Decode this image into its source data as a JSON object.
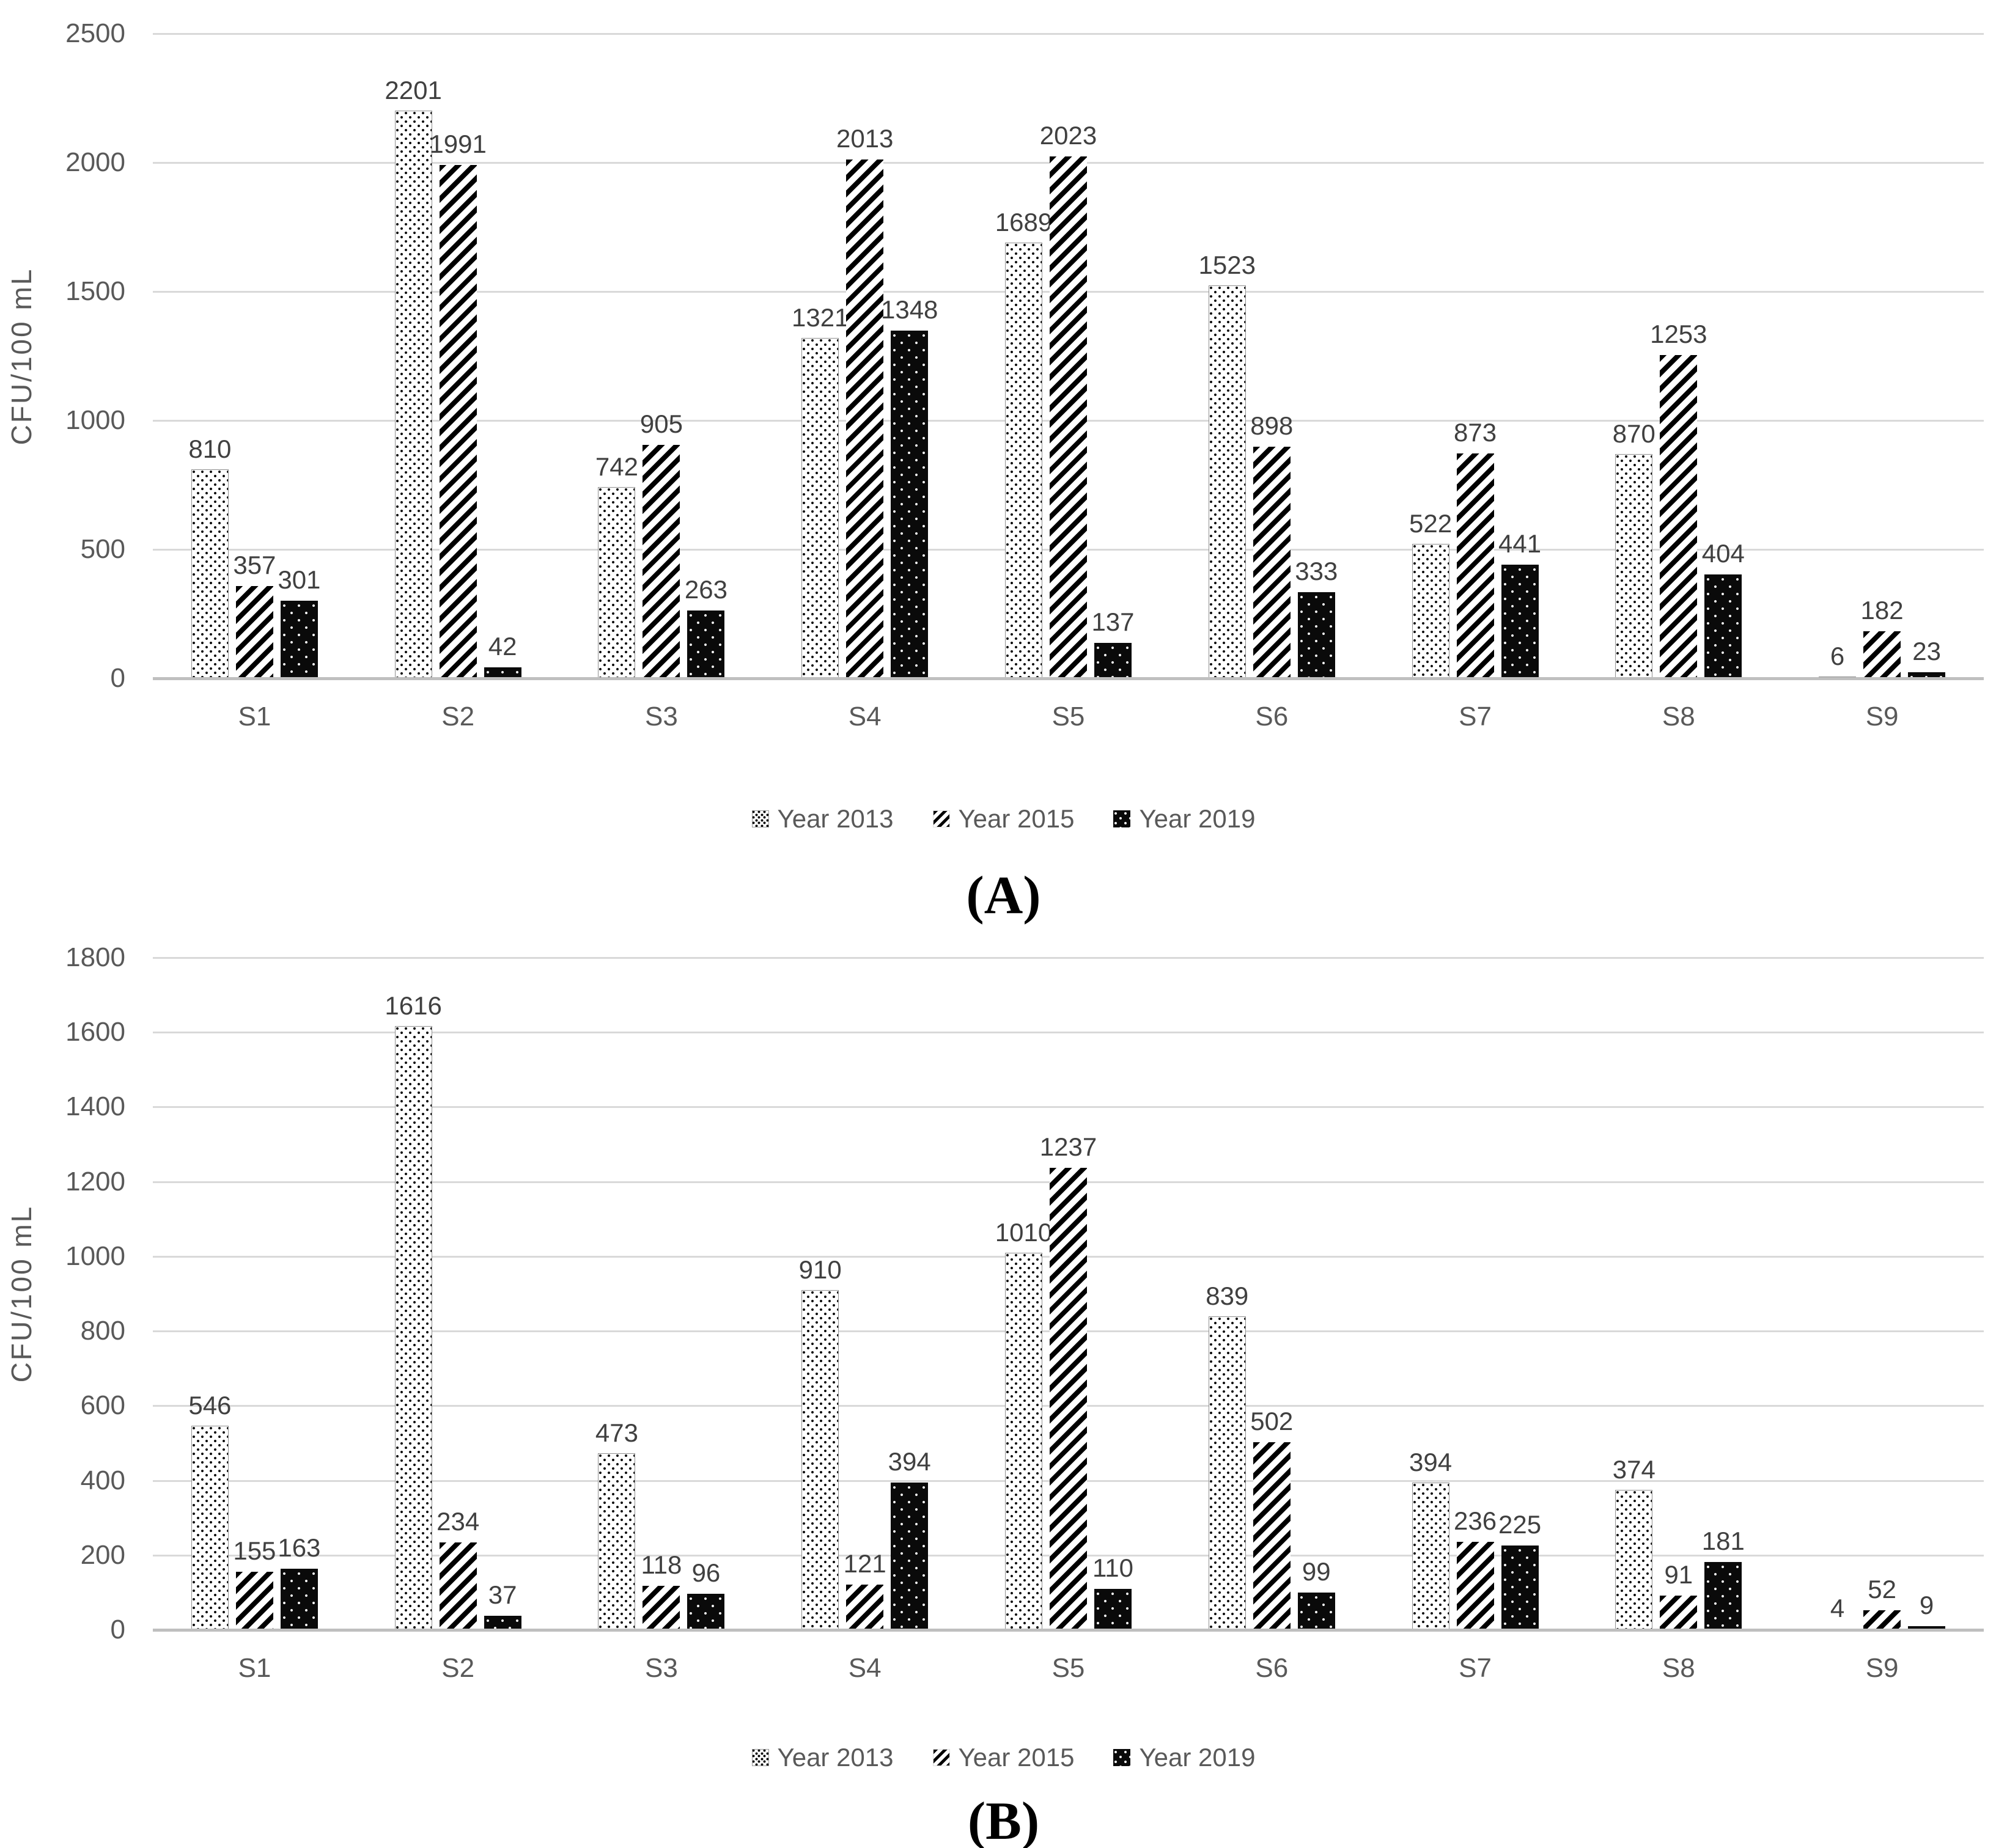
{
  "chart_data": [
    {
      "type": "bar",
      "panel_label": "(A)",
      "title": "",
      "xlabel": "",
      "ylabel": "CFU/100 mL",
      "ylim": [
        0,
        2500
      ],
      "ytick_step": 500,
      "yticks": [
        0,
        500,
        1000,
        1500,
        2000,
        2500
      ],
      "grid": true,
      "legend_position": "bottom",
      "categories": [
        "S1",
        "S2",
        "S3",
        "S4",
        "S5",
        "S6",
        "S7",
        "S8",
        "S9"
      ],
      "series": [
        {
          "name": "Year 2013",
          "pattern": "small-black-dots-on-white",
          "values": [
            810,
            2201,
            742,
            1321,
            1689,
            1523,
            522,
            870,
            6
          ]
        },
        {
          "name": "Year 2015",
          "pattern": "black-diagonal-stripes",
          "values": [
            357,
            1991,
            905,
            2013,
            2023,
            898,
            873,
            1253,
            182
          ]
        },
        {
          "name": "Year 2019",
          "pattern": "solid-black-with-white-dots",
          "values": [
            301,
            42,
            263,
            1348,
            137,
            333,
            441,
            404,
            23
          ]
        }
      ]
    },
    {
      "type": "bar",
      "panel_label": "(B)",
      "title": "",
      "xlabel": "",
      "ylabel": "CFU/100 mL",
      "ylim": [
        0,
        1800
      ],
      "ytick_step": 200,
      "yticks": [
        0,
        200,
        400,
        600,
        800,
        1000,
        1200,
        1400,
        1600,
        1800
      ],
      "grid": true,
      "legend_position": "bottom",
      "categories": [
        "S1",
        "S2",
        "S3",
        "S4",
        "S5",
        "S6",
        "S7",
        "S8",
        "S9"
      ],
      "series": [
        {
          "name": "Year 2013",
          "pattern": "small-black-dots-on-white",
          "values": [
            546,
            1616,
            473,
            910,
            1010,
            839,
            394,
            374,
            4
          ]
        },
        {
          "name": "Year 2015",
          "pattern": "black-diagonal-stripes",
          "values": [
            155,
            234,
            118,
            121,
            1237,
            502,
            236,
            91,
            52
          ]
        },
        {
          "name": "Year 2019",
          "pattern": "solid-black-with-white-dots",
          "values": [
            163,
            37,
            96,
            394,
            110,
            99,
            225,
            181,
            9
          ]
        }
      ]
    }
  ],
  "styles": {
    "background": "#ffffff",
    "grid_color": "#d9d9d9",
    "baseline_color": "#bfbfbf",
    "tick_text_color": "#595959",
    "value_label_color": "#404040",
    "category_text_color": "#595959",
    "legend_text_color": "#595959",
    "panel_label_color": "#000000",
    "bar_black": "#0a0a0a"
  }
}
